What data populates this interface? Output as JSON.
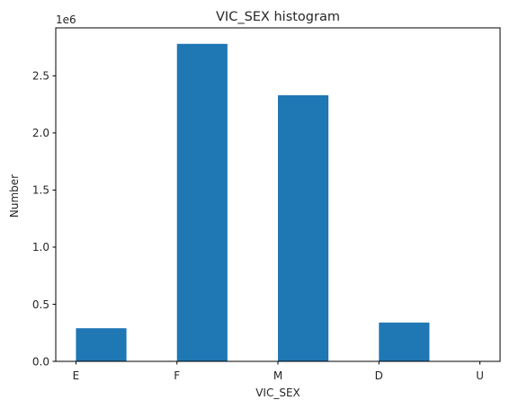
{
  "chart_data": {
    "type": "bar",
    "title": "VIC_SEX histogram",
    "xlabel": "VIC_SEX",
    "ylabel": "Number",
    "offset_text": "1e6",
    "categories": [
      "E",
      "F",
      "M",
      "D",
      "U"
    ],
    "values": [
      290000,
      2780000,
      2330000,
      340000,
      0
    ],
    "ylim": [
      0,
      2920000
    ],
    "yticks": [
      0,
      500000,
      1000000,
      1500000,
      2000000,
      2500000
    ],
    "ytick_labels": [
      "0.0",
      "0.5",
      "1.0",
      "1.5",
      "2.0",
      "2.5"
    ],
    "bar_color": "#1f77b4",
    "grid": false
  }
}
